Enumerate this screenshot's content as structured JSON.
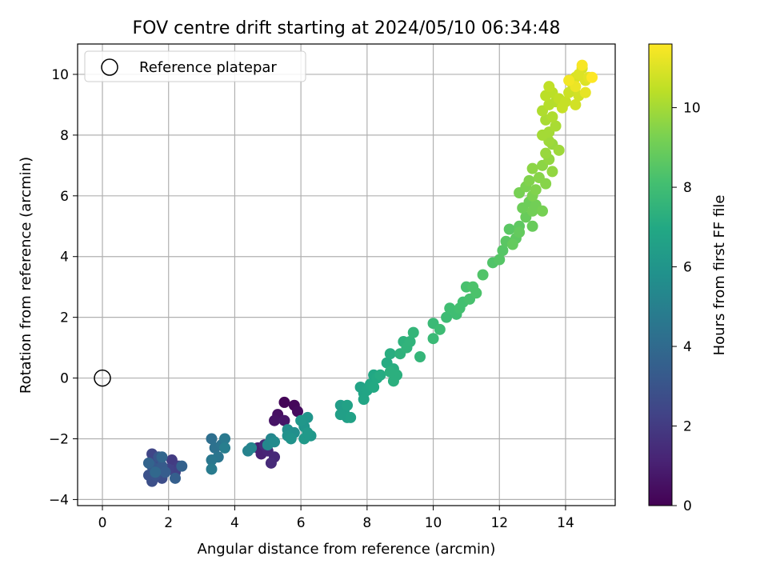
{
  "chart_data": {
    "type": "scatter",
    "title": "FOV centre drift starting at 2024/05/10 06:34:48",
    "xlabel": "Angular distance from reference (arcmin)",
    "ylabel": "Rotation from reference (arcmin)",
    "xlim": [
      -0.75,
      15.5
    ],
    "ylim": [
      -4.2,
      11.0
    ],
    "xticks": [
      0,
      2,
      4,
      6,
      8,
      10,
      12,
      14
    ],
    "yticks": [
      -4,
      -2,
      0,
      2,
      4,
      6,
      8,
      10
    ],
    "grid": true,
    "legend": {
      "placement": "top-left",
      "entries": [
        "Reference platepar"
      ]
    },
    "reference_point": {
      "x": 0,
      "y": 0,
      "marker": "open-circle"
    },
    "colorbar": {
      "label": "Hours from first FF file",
      "colormap": "viridis",
      "range": [
        0,
        11.6
      ],
      "ticks": [
        0,
        2,
        4,
        6,
        8,
        10
      ]
    },
    "series": [
      {
        "points": [
          {
            "x": 5.5,
            "y": -0.8,
            "c": 0.1
          },
          {
            "x": 5.8,
            "y": -0.9,
            "c": 0.2
          },
          {
            "x": 5.9,
            "y": -1.1,
            "c": 0.3
          },
          {
            "x": 5.3,
            "y": -1.2,
            "c": 0.5
          },
          {
            "x": 5.2,
            "y": -1.4,
            "c": 0.6
          },
          {
            "x": 5.5,
            "y": -1.4,
            "c": 0.7
          },
          {
            "x": 4.7,
            "y": -2.3,
            "c": 1.0
          },
          {
            "x": 4.8,
            "y": -2.5,
            "c": 1.1
          },
          {
            "x": 5.0,
            "y": -2.4,
            "c": 1.2
          },
          {
            "x": 5.2,
            "y": -2.6,
            "c": 1.3
          },
          {
            "x": 5.1,
            "y": -2.8,
            "c": 1.4
          },
          {
            "x": 4.9,
            "y": -2.2,
            "c": 1.5
          },
          {
            "x": 2.1,
            "y": -2.7,
            "c": 2.0
          },
          {
            "x": 2.3,
            "y": -2.9,
            "c": 2.1
          },
          {
            "x": 2.2,
            "y": -3.1,
            "c": 2.2
          },
          {
            "x": 2.0,
            "y": -3.0,
            "c": 2.3
          },
          {
            "x": 1.5,
            "y": -2.5,
            "c": 2.4
          },
          {
            "x": 1.6,
            "y": -2.8,
            "c": 2.5
          },
          {
            "x": 1.7,
            "y": -3.0,
            "c": 2.6
          },
          {
            "x": 1.8,
            "y": -3.3,
            "c": 2.7
          },
          {
            "x": 1.5,
            "y": -3.4,
            "c": 2.8
          },
          {
            "x": 1.4,
            "y": -3.2,
            "c": 2.9
          },
          {
            "x": 1.6,
            "y": -3.2,
            "c": 3.0
          },
          {
            "x": 1.7,
            "y": -2.6,
            "c": 3.1
          },
          {
            "x": 1.5,
            "y": -2.9,
            "c": 3.2
          },
          {
            "x": 1.8,
            "y": -2.9,
            "c": 3.3
          },
          {
            "x": 1.9,
            "y": -3.1,
            "c": 3.4
          },
          {
            "x": 2.2,
            "y": -3.3,
            "c": 3.5
          },
          {
            "x": 2.4,
            "y": -2.9,
            "c": 3.6
          },
          {
            "x": 1.4,
            "y": -2.8,
            "c": 3.7
          },
          {
            "x": 1.8,
            "y": -2.6,
            "c": 3.8
          },
          {
            "x": 1.6,
            "y": -3.1,
            "c": 3.9
          },
          {
            "x": 3.3,
            "y": -2.0,
            "c": 4.2
          },
          {
            "x": 3.4,
            "y": -2.3,
            "c": 4.3
          },
          {
            "x": 3.6,
            "y": -2.2,
            "c": 4.4
          },
          {
            "x": 3.5,
            "y": -2.6,
            "c": 4.5
          },
          {
            "x": 3.3,
            "y": -2.7,
            "c": 4.6
          },
          {
            "x": 3.7,
            "y": -2.0,
            "c": 4.7
          },
          {
            "x": 3.3,
            "y": -3.0,
            "c": 4.8
          },
          {
            "x": 3.7,
            "y": -2.3,
            "c": 4.9
          },
          {
            "x": 4.4,
            "y": -2.4,
            "c": 5.1
          },
          {
            "x": 4.5,
            "y": -2.3,
            "c": 5.2
          },
          {
            "x": 5.1,
            "y": -2.0,
            "c": 5.3
          },
          {
            "x": 5.0,
            "y": -2.2,
            "c": 5.4
          },
          {
            "x": 5.2,
            "y": -2.1,
            "c": 5.5
          },
          {
            "x": 5.6,
            "y": -1.7,
            "c": 5.6
          },
          {
            "x": 5.8,
            "y": -1.8,
            "c": 5.7
          },
          {
            "x": 5.6,
            "y": -1.9,
            "c": 5.8
          },
          {
            "x": 5.7,
            "y": -2.0,
            "c": 5.9
          },
          {
            "x": 6.1,
            "y": -1.6,
            "c": 6.0
          },
          {
            "x": 6.2,
            "y": -1.3,
            "c": 6.0
          },
          {
            "x": 6.0,
            "y": -1.4,
            "c": 6.1
          },
          {
            "x": 6.3,
            "y": -1.9,
            "c": 6.1
          },
          {
            "x": 6.1,
            "y": -2.0,
            "c": 6.2
          },
          {
            "x": 6.2,
            "y": -1.8,
            "c": 6.2
          },
          {
            "x": 7.2,
            "y": -0.9,
            "c": 6.4
          },
          {
            "x": 7.3,
            "y": -1.1,
            "c": 6.4
          },
          {
            "x": 7.4,
            "y": -1.3,
            "c": 6.5
          },
          {
            "x": 7.2,
            "y": -1.2,
            "c": 6.5
          },
          {
            "x": 7.5,
            "y": -1.3,
            "c": 6.6
          },
          {
            "x": 7.4,
            "y": -0.9,
            "c": 6.6
          },
          {
            "x": 7.8,
            "y": -0.3,
            "c": 6.7
          },
          {
            "x": 7.9,
            "y": -0.5,
            "c": 6.7
          },
          {
            "x": 8.0,
            "y": -0.4,
            "c": 6.8
          },
          {
            "x": 7.9,
            "y": -0.7,
            "c": 6.8
          },
          {
            "x": 8.1,
            "y": -0.2,
            "c": 6.9
          },
          {
            "x": 8.2,
            "y": 0.1,
            "c": 6.9
          },
          {
            "x": 8.3,
            "y": 0.0,
            "c": 7.0
          },
          {
            "x": 8.2,
            "y": -0.3,
            "c": 7.0
          },
          {
            "x": 8.4,
            "y": 0.1,
            "c": 7.1
          },
          {
            "x": 8.6,
            "y": 0.5,
            "c": 7.1
          },
          {
            "x": 8.7,
            "y": 0.8,
            "c": 7.2
          },
          {
            "x": 8.8,
            "y": 0.3,
            "c": 7.2
          },
          {
            "x": 8.9,
            "y": 0.1,
            "c": 7.3
          },
          {
            "x": 8.8,
            "y": -0.1,
            "c": 7.3
          },
          {
            "x": 8.7,
            "y": 0.2,
            "c": 7.3
          },
          {
            "x": 9.0,
            "y": 0.8,
            "c": 7.4
          },
          {
            "x": 9.1,
            "y": 1.2,
            "c": 7.4
          },
          {
            "x": 9.2,
            "y": 1.0,
            "c": 7.5
          },
          {
            "x": 9.3,
            "y": 1.2,
            "c": 7.5
          },
          {
            "x": 9.4,
            "y": 1.5,
            "c": 7.6
          },
          {
            "x": 9.6,
            "y": 0.7,
            "c": 7.6
          },
          {
            "x": 10.0,
            "y": 1.3,
            "c": 7.8
          },
          {
            "x": 10.0,
            "y": 1.8,
            "c": 7.8
          },
          {
            "x": 10.2,
            "y": 1.6,
            "c": 7.9
          },
          {
            "x": 10.4,
            "y": 2.0,
            "c": 7.9
          },
          {
            "x": 10.5,
            "y": 2.3,
            "c": 8.0
          },
          {
            "x": 10.7,
            "y": 2.1,
            "c": 8.0
          },
          {
            "x": 10.8,
            "y": 2.3,
            "c": 8.1
          },
          {
            "x": 10.9,
            "y": 2.5,
            "c": 8.1
          },
          {
            "x": 11.0,
            "y": 3.0,
            "c": 8.2
          },
          {
            "x": 11.1,
            "y": 2.6,
            "c": 8.2
          },
          {
            "x": 11.2,
            "y": 3.0,
            "c": 8.3
          },
          {
            "x": 11.3,
            "y": 2.8,
            "c": 8.3
          },
          {
            "x": 11.5,
            "y": 3.4,
            "c": 8.4
          },
          {
            "x": 11.8,
            "y": 3.8,
            "c": 8.4
          },
          {
            "x": 12.0,
            "y": 3.9,
            "c": 8.5
          },
          {
            "x": 12.1,
            "y": 4.2,
            "c": 8.5
          },
          {
            "x": 12.2,
            "y": 4.5,
            "c": 8.6
          },
          {
            "x": 12.3,
            "y": 4.9,
            "c": 8.6
          },
          {
            "x": 12.5,
            "y": 4.6,
            "c": 8.7
          },
          {
            "x": 12.6,
            "y": 5.0,
            "c": 8.7
          },
          {
            "x": 12.4,
            "y": 4.4,
            "c": 8.8
          },
          {
            "x": 12.6,
            "y": 4.8,
            "c": 8.8
          },
          {
            "x": 12.8,
            "y": 5.3,
            "c": 8.9
          },
          {
            "x": 13.0,
            "y": 5.0,
            "c": 8.9
          },
          {
            "x": 12.7,
            "y": 5.6,
            "c": 9.0
          },
          {
            "x": 12.9,
            "y": 5.8,
            "c": 9.0
          },
          {
            "x": 13.0,
            "y": 5.5,
            "c": 9.1
          },
          {
            "x": 13.1,
            "y": 5.7,
            "c": 9.1
          },
          {
            "x": 13.3,
            "y": 5.5,
            "c": 9.2
          },
          {
            "x": 12.6,
            "y": 6.1,
            "c": 9.2
          },
          {
            "x": 12.8,
            "y": 6.3,
            "c": 9.3
          },
          {
            "x": 13.0,
            "y": 6.0,
            "c": 9.3
          },
          {
            "x": 12.9,
            "y": 6.5,
            "c": 9.4
          },
          {
            "x": 13.1,
            "y": 6.2,
            "c": 9.4
          },
          {
            "x": 13.2,
            "y": 6.6,
            "c": 9.5
          },
          {
            "x": 13.4,
            "y": 6.4,
            "c": 9.5
          },
          {
            "x": 13.0,
            "y": 6.9,
            "c": 9.6
          },
          {
            "x": 13.3,
            "y": 7.0,
            "c": 9.6
          },
          {
            "x": 13.5,
            "y": 7.2,
            "c": 9.7
          },
          {
            "x": 13.6,
            "y": 6.8,
            "c": 9.7
          },
          {
            "x": 13.4,
            "y": 7.4,
            "c": 9.8
          },
          {
            "x": 13.6,
            "y": 7.7,
            "c": 9.8
          },
          {
            "x": 13.8,
            "y": 7.5,
            "c": 9.9
          },
          {
            "x": 13.5,
            "y": 7.8,
            "c": 9.9
          },
          {
            "x": 13.3,
            "y": 8.0,
            "c": 10.0
          },
          {
            "x": 13.5,
            "y": 8.1,
            "c": 10.0
          },
          {
            "x": 13.7,
            "y": 8.3,
            "c": 10.1
          },
          {
            "x": 13.4,
            "y": 8.5,
            "c": 10.1
          },
          {
            "x": 13.6,
            "y": 8.6,
            "c": 10.2
          },
          {
            "x": 13.3,
            "y": 8.8,
            "c": 10.2
          },
          {
            "x": 13.5,
            "y": 9.0,
            "c": 10.3
          },
          {
            "x": 13.7,
            "y": 9.1,
            "c": 10.3
          },
          {
            "x": 13.4,
            "y": 9.3,
            "c": 10.4
          },
          {
            "x": 13.6,
            "y": 9.4,
            "c": 10.4
          },
          {
            "x": 13.5,
            "y": 9.6,
            "c": 10.5
          },
          {
            "x": 13.8,
            "y": 9.2,
            "c": 10.5
          },
          {
            "x": 13.9,
            "y": 8.9,
            "c": 10.6
          },
          {
            "x": 14.0,
            "y": 9.1,
            "c": 10.6
          },
          {
            "x": 14.1,
            "y": 9.4,
            "c": 10.7
          },
          {
            "x": 14.2,
            "y": 9.7,
            "c": 10.7
          },
          {
            "x": 14.3,
            "y": 9.0,
            "c": 10.8
          },
          {
            "x": 14.4,
            "y": 9.3,
            "c": 10.8
          },
          {
            "x": 14.3,
            "y": 9.9,
            "c": 10.9
          },
          {
            "x": 14.5,
            "y": 10.2,
            "c": 10.9
          },
          {
            "x": 14.4,
            "y": 10.0,
            "c": 11.0
          },
          {
            "x": 14.6,
            "y": 9.8,
            "c": 11.0
          },
          {
            "x": 14.7,
            "y": 9.9,
            "c": 11.1
          },
          {
            "x": 14.6,
            "y": 9.4,
            "c": 11.2
          },
          {
            "x": 14.3,
            "y": 9.6,
            "c": 11.3
          },
          {
            "x": 14.1,
            "y": 9.8,
            "c": 11.4
          },
          {
            "x": 14.5,
            "y": 10.3,
            "c": 11.5
          },
          {
            "x": 14.8,
            "y": 9.9,
            "c": 11.6
          }
        ]
      }
    ]
  }
}
